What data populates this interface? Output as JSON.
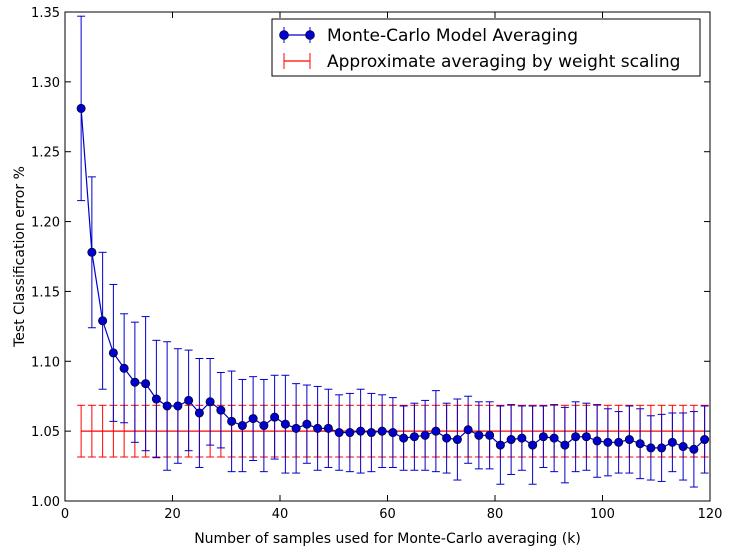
{
  "chart_data": {
    "type": "line",
    "xlabel": "Number of samples used for Monte-Carlo averaging (k)",
    "ylabel": "Test Classification error %",
    "xlim": [
      0,
      120
    ],
    "ylim": [
      1.0,
      1.35
    ],
    "x_ticks": [
      0,
      20,
      40,
      60,
      80,
      100,
      120
    ],
    "y_ticks": [
      1.0,
      1.05,
      1.1,
      1.15,
      1.2,
      1.25,
      1.3,
      1.35
    ],
    "legend_position": "top-right",
    "grid": false,
    "series": [
      {
        "name": "Monte-Carlo Model Averaging",
        "color": "#0000cc",
        "marker": "circle",
        "x": [
          3,
          5,
          7,
          9,
          11,
          13,
          15,
          17,
          19,
          21,
          23,
          25,
          27,
          29,
          31,
          33,
          35,
          37,
          39,
          41,
          43,
          45,
          47,
          49,
          51,
          53,
          55,
          57,
          59,
          61,
          63,
          65,
          67,
          69,
          71,
          73,
          75,
          77,
          79,
          81,
          83,
          85,
          87,
          89,
          91,
          93,
          95,
          97,
          99,
          101,
          103,
          105,
          107,
          109,
          111,
          113,
          115,
          117,
          119
        ],
        "y": [
          1.281,
          1.178,
          1.129,
          1.106,
          1.095,
          1.085,
          1.084,
          1.073,
          1.068,
          1.068,
          1.072,
          1.063,
          1.071,
          1.065,
          1.057,
          1.054,
          1.059,
          1.054,
          1.06,
          1.055,
          1.052,
          1.055,
          1.052,
          1.052,
          1.049,
          1.049,
          1.05,
          1.049,
          1.05,
          1.049,
          1.045,
          1.046,
          1.047,
          1.05,
          1.045,
          1.044,
          1.051,
          1.047,
          1.047,
          1.04,
          1.044,
          1.045,
          1.04,
          1.046,
          1.045,
          1.04,
          1.046,
          1.046,
          1.043,
          1.042,
          1.042,
          1.044,
          1.041,
          1.038,
          1.038,
          1.042,
          1.039,
          1.037,
          1.044
        ],
        "yerr": [
          0.066,
          0.054,
          0.049,
          0.049,
          0.039,
          0.043,
          0.048,
          0.042,
          0.046,
          0.041,
          0.036,
          0.039,
          0.031,
          0.027,
          0.036,
          0.033,
          0.03,
          0.033,
          0.03,
          0.035,
          0.032,
          0.028,
          0.03,
          0.028,
          0.027,
          0.028,
          0.03,
          0.028,
          0.026,
          0.025,
          0.023,
          0.024,
          0.025,
          0.029,
          0.025,
          0.029,
          0.024,
          0.024,
          0.024,
          0.028,
          0.025,
          0.023,
          0.028,
          0.022,
          0.024,
          0.027,
          0.025,
          0.024,
          0.026,
          0.024,
          0.022,
          0.024,
          0.025,
          0.023,
          0.024,
          0.021,
          0.024,
          0.027,
          0.024
        ]
      },
      {
        "name": "Approximate averaging by weight scaling",
        "color": "#ff0000",
        "marker": "none",
        "x": [
          3,
          5,
          7,
          9,
          11,
          13,
          15,
          17,
          19,
          21,
          23,
          25,
          27,
          29,
          31,
          33,
          35,
          37,
          39,
          41,
          43,
          45,
          47,
          49,
          51,
          53,
          55,
          57,
          59,
          61,
          63,
          65,
          67,
          69,
          71,
          73,
          75,
          77,
          79,
          81,
          83,
          85,
          87,
          89,
          91,
          93,
          95,
          97,
          99,
          101,
          103,
          105,
          107,
          109,
          111,
          113,
          115,
          117,
          119
        ],
        "y_value": 1.05,
        "yerr_value": 0.0185
      }
    ]
  }
}
